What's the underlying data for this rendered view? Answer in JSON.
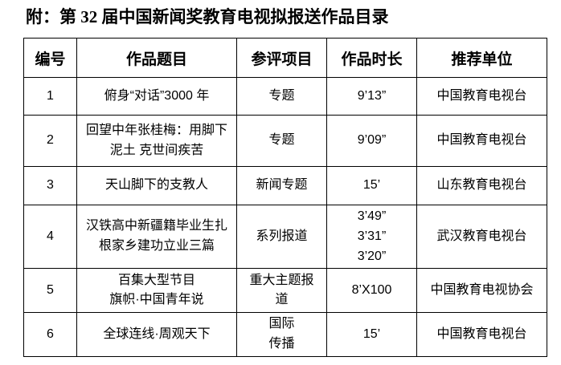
{
  "page": {
    "title": "附：第 32 届中国新闻奖教育电视拟报送作品目录"
  },
  "table": {
    "headers": [
      "编号",
      "作品题目",
      "参评项目",
      "作品时长",
      "推荐单位"
    ],
    "rows": [
      {
        "no": "1",
        "title": "俯身“对话”3000 年",
        "category": "专题",
        "duration": "9’13”",
        "unit": "中国教育电视台"
      },
      {
        "no": "2",
        "title": "回望中年张桂梅：用脚下\n泥土 克世间疾苦",
        "category": "专题",
        "duration": "9’09”",
        "unit": "中国教育电视台"
      },
      {
        "no": "3",
        "title": "天山脚下的支教人",
        "category": "新闻专题",
        "duration": "15’",
        "unit": "山东教育电视台"
      },
      {
        "no": "4",
        "title": "汉铁高中新疆籍毕业生扎\n根家乡建功立业三篇",
        "category": "系列报道",
        "duration": "3’49”\n3’31”\n3’20”",
        "unit": "武汉教育电视台"
      },
      {
        "no": "5",
        "title": "百集大型节目\n旗帜·中国青年说",
        "category": "重大主题报\n道",
        "duration": "8’X100",
        "unit": "中国教育电视协会"
      },
      {
        "no": "6",
        "title": "全球连线·周观天下",
        "category": "国际\n传播",
        "duration": "15’",
        "unit": "中国教育电视台"
      }
    ]
  }
}
